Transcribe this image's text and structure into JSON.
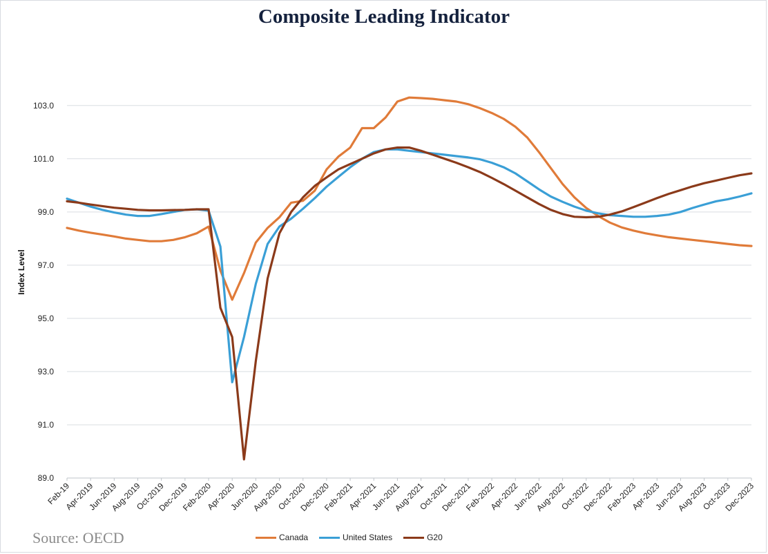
{
  "chart_data": {
    "type": "line",
    "title": "Composite Leading Indicator",
    "xlabel": "",
    "ylabel": "Index Level",
    "ylim": [
      89.0,
      104.5
    ],
    "yticks": [
      "89.0",
      "91.0",
      "93.0",
      "95.0",
      "97.0",
      "99.0",
      "101.0",
      "103.0"
    ],
    "x_tick_labels": [
      "Feb-19",
      "Apr-2019",
      "Jun-2019",
      "Aug-2019",
      "Oct-2019",
      "Dec-2019",
      "Feb-2020",
      "Apr-2020",
      "Jun-2020",
      "Aug-2020",
      "Oct-2020",
      "Dec-2020",
      "Feb-2021",
      "Apr-2021",
      "Jun-2021",
      "Aug-2021",
      "Oct-2021",
      "Dec-2021",
      "Feb-2022",
      "Apr-2022",
      "Jun-2022",
      "Aug-2022",
      "Oct-2022",
      "Dec-2022",
      "Feb-2023",
      "Apr-2023",
      "Jun-2023",
      "Aug-2023",
      "Oct-2023",
      "Dec-2023"
    ],
    "x": [
      "2019-02",
      "2019-03",
      "2019-04",
      "2019-05",
      "2019-06",
      "2019-07",
      "2019-08",
      "2019-09",
      "2019-10",
      "2019-11",
      "2019-12",
      "2020-01",
      "2020-02",
      "2020-03",
      "2020-04",
      "2020-05",
      "2020-06",
      "2020-07",
      "2020-08",
      "2020-09",
      "2020-10",
      "2020-11",
      "2020-12",
      "2021-01",
      "2021-02",
      "2021-03",
      "2021-04",
      "2021-05",
      "2021-06",
      "2021-07",
      "2021-08",
      "2021-09",
      "2021-10",
      "2021-11",
      "2021-12",
      "2022-01",
      "2022-02",
      "2022-03",
      "2022-04",
      "2022-05",
      "2022-06",
      "2022-07",
      "2022-08",
      "2022-09",
      "2022-10",
      "2022-11",
      "2022-12",
      "2023-01",
      "2023-02",
      "2023-03",
      "2023-04",
      "2023-05",
      "2023-06",
      "2023-07",
      "2023-08",
      "2023-09",
      "2023-10",
      "2023-11",
      "2023-12"
    ],
    "grid": "horizontal",
    "legend_position": "bottom",
    "series": [
      {
        "name": "Canada",
        "color": "#e07b39",
        "values": [
          98.4,
          98.3,
          98.22,
          98.15,
          98.08,
          98.0,
          97.95,
          97.9,
          97.9,
          97.95,
          98.05,
          98.2,
          98.45,
          96.8,
          95.7,
          96.7,
          97.85,
          98.4,
          98.8,
          99.35,
          99.42,
          99.8,
          100.6,
          101.08,
          101.42,
          102.15,
          102.15,
          102.55,
          103.15,
          103.3,
          103.28,
          103.25,
          103.2,
          103.15,
          103.05,
          102.9,
          102.72,
          102.5,
          102.2,
          101.8,
          101.25,
          100.65,
          100.05,
          99.55,
          99.15,
          98.85,
          98.6,
          98.42,
          98.3,
          98.2,
          98.12,
          98.05,
          98.0,
          97.95,
          97.9,
          97.85,
          97.8,
          97.75,
          97.72
        ]
      },
      {
        "name": "United States",
        "color": "#3a9fd6",
        "values": [
          99.5,
          99.35,
          99.2,
          99.08,
          98.98,
          98.9,
          98.85,
          98.85,
          98.92,
          99.0,
          99.08,
          99.1,
          99.05,
          97.7,
          92.6,
          94.3,
          96.3,
          97.8,
          98.45,
          98.75,
          99.12,
          99.52,
          99.95,
          100.32,
          100.68,
          101.0,
          101.25,
          101.35,
          101.35,
          101.3,
          101.25,
          101.2,
          101.15,
          101.1,
          101.05,
          100.98,
          100.85,
          100.68,
          100.45,
          100.15,
          99.85,
          99.58,
          99.38,
          99.2,
          99.05,
          98.95,
          98.88,
          98.85,
          98.82,
          98.82,
          98.85,
          98.9,
          99.0,
          99.15,
          99.28,
          99.4,
          99.48,
          99.58,
          99.7
        ]
      },
      {
        "name": "G20",
        "color": "#8b3a1a",
        "values": [
          99.4,
          99.35,
          99.28,
          99.22,
          99.16,
          99.12,
          99.08,
          99.06,
          99.06,
          99.07,
          99.08,
          99.1,
          99.1,
          95.4,
          94.3,
          89.7,
          93.4,
          96.5,
          98.2,
          99.0,
          99.55,
          99.98,
          100.3,
          100.6,
          100.8,
          101.0,
          101.2,
          101.35,
          101.42,
          101.42,
          101.3,
          101.15,
          101.0,
          100.85,
          100.68,
          100.5,
          100.28,
          100.05,
          99.8,
          99.55,
          99.3,
          99.08,
          98.92,
          98.82,
          98.8,
          98.82,
          98.9,
          99.02,
          99.18,
          99.35,
          99.52,
          99.68,
          99.82,
          99.96,
          100.08,
          100.18,
          100.28,
          100.38,
          100.45
        ]
      }
    ]
  },
  "source_text": "Source: OECD"
}
